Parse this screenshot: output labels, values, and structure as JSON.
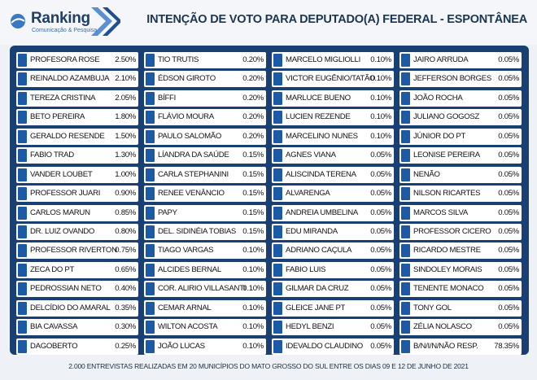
{
  "header": {
    "brand": "Ranking",
    "brand_sub": "Comunicação & Pesquisa",
    "title": "INTENÇÃO DE VOTO PARA DEPUTADO(A) FEDERAL - ESPONTÂNEA"
  },
  "colors": {
    "accent": "#1d5aa6",
    "frame": "#1a3f73"
  },
  "chart_data": {
    "type": "table",
    "title": "INTENÇÃO DE VOTO PARA DEPUTADO(A) FEDERAL - ESPONTÂNEA",
    "columns": [
      [
        {
          "name": "PROFESORA ROSE",
          "value": "2.50%"
        },
        {
          "name": "REINALDO AZAMBUJA",
          "value": "2.10%"
        },
        {
          "name": "TEREZA CRISTINA",
          "value": "2.05%"
        },
        {
          "name": "BETO PEREIRA",
          "value": "1.80%"
        },
        {
          "name": "GERALDO RESENDE",
          "value": "1.50%"
        },
        {
          "name": "FABIO TRAD",
          "value": "1.30%"
        },
        {
          "name": "VANDER LOUBET",
          "value": "1.00%"
        },
        {
          "name": "PROFESSOR JUARI",
          "value": "0.90%"
        },
        {
          "name": "CARLOS MARUN",
          "value": "0.85%"
        },
        {
          "name": "DR. LUIZ OVANDO",
          "value": "0.80%"
        },
        {
          "name": "PROFESSOR RIVERTON",
          "value": "0.75%"
        },
        {
          "name": "ZECA DO PT",
          "value": "0.65%"
        },
        {
          "name": "PEDROSSIAN NETO",
          "value": "0.40%"
        },
        {
          "name": "DELCÍDIO DO AMARAL",
          "value": "0.35%"
        },
        {
          "name": "BIA CAVASSA",
          "value": "0.30%"
        },
        {
          "name": "DAGOBERTO",
          "value": "0.25%"
        }
      ],
      [
        {
          "name": "TIO TRUTIS",
          "value": "0.20%"
        },
        {
          "name": "ÉDSON GIROTO",
          "value": "0.20%"
        },
        {
          "name": "BÍFFI",
          "value": "0.20%"
        },
        {
          "name": "FLÁVIO MOURA",
          "value": "0.20%"
        },
        {
          "name": "PAULO SALOMÃO",
          "value": "0.20%"
        },
        {
          "name": "LÍANDRA DA SAÚDE",
          "value": "0.15%"
        },
        {
          "name": "CARLA STEPHANINI",
          "value": "0.15%"
        },
        {
          "name": "RENEE VENÂNCIO",
          "value": "0.15%"
        },
        {
          "name": "PAPY",
          "value": "0.15%"
        },
        {
          "name": "DEL. SIDINÉIA TOBIAS",
          "value": "0.15%"
        },
        {
          "name": "TIAGO VARGAS",
          "value": "0.10%"
        },
        {
          "name": "ALCIDES BERNAL",
          "value": "0.10%"
        },
        {
          "name": "COR. ALIRIO VILLASANTI",
          "value": "0.10%"
        },
        {
          "name": "CEMAR ARNAL",
          "value": "0.10%"
        },
        {
          "name": "WILTON ACOSTA",
          "value": "0.10%"
        },
        {
          "name": "JOÃO LUCAS",
          "value": "0.10%"
        }
      ],
      [
        {
          "name": "MARCELO MIGLIOLLI",
          "value": "0.10%"
        },
        {
          "name": "VICTOR EUGÊNIO/TATÃO",
          "value": "0.10%"
        },
        {
          "name": "MARLUCE BUENO",
          "value": "0.10%"
        },
        {
          "name": "LUCIEN REZENDE",
          "value": "0.10%"
        },
        {
          "name": "MARCELINO NUNES",
          "value": "0.10%"
        },
        {
          "name": "AGNES VIANA",
          "value": "0.05%"
        },
        {
          "name": "ALISCINDA TERENA",
          "value": "0.05%"
        },
        {
          "name": "ALVARENGA",
          "value": "0.05%"
        },
        {
          "name": "ANDREIA UMBELINA",
          "value": "0.05%"
        },
        {
          "name": "EDU MIRANDA",
          "value": "0.05%"
        },
        {
          "name": "ADRIANO CAÇULA",
          "value": "0.05%"
        },
        {
          "name": "FABIO LUIS",
          "value": "0.05%"
        },
        {
          "name": "GILMAR DA CRUZ",
          "value": "0.05%"
        },
        {
          "name": "GLEICE JANE PT",
          "value": "0.05%"
        },
        {
          "name": "HEDYL BENZI",
          "value": "0.05%"
        },
        {
          "name": "IDEVALDO CLAUDINO",
          "value": "0.05%"
        }
      ],
      [
        {
          "name": "JAIRO ARRUDA",
          "value": "0.05%"
        },
        {
          "name": "JEFFERSON BORGES",
          "value": "0.05%"
        },
        {
          "name": "JOÃO ROCHA",
          "value": "0.05%"
        },
        {
          "name": "JULIANO GOGOSZ",
          "value": "0.05%"
        },
        {
          "name": "JÚNIOR DO PT",
          "value": "0.05%"
        },
        {
          "name": "LEONISE PEREIRA",
          "value": "0.05%"
        },
        {
          "name": "NENÃO",
          "value": "0.05%"
        },
        {
          "name": "NILSON RICARTES",
          "value": "0.05%"
        },
        {
          "name": "MARCOS SILVA",
          "value": "0.05%"
        },
        {
          "name": "PROFESSOR CICERO",
          "value": "0.05%"
        },
        {
          "name": "RICARDO MESTRE",
          "value": "0.05%"
        },
        {
          "name": "SINDOLEY MORAIS",
          "value": "0.05%"
        },
        {
          "name": "TENENTE MONACO",
          "value": "0.05%"
        },
        {
          "name": "TONY GOL",
          "value": "0.05%"
        },
        {
          "name": "ZÉLIA NOLASCO",
          "value": "0.05%"
        },
        {
          "name": "B/N/I/N/NÃO RESP.",
          "value": "78.35%"
        }
      ]
    ]
  },
  "footer": {
    "note": "2.000 ENTREVISTAS REALIZADAS EM 20 MUNICÍPIOS DO MATO GROSSO DO SUL ENTRE OS  DIAS 09 E 12 DE JUNHO DE 2021"
  }
}
